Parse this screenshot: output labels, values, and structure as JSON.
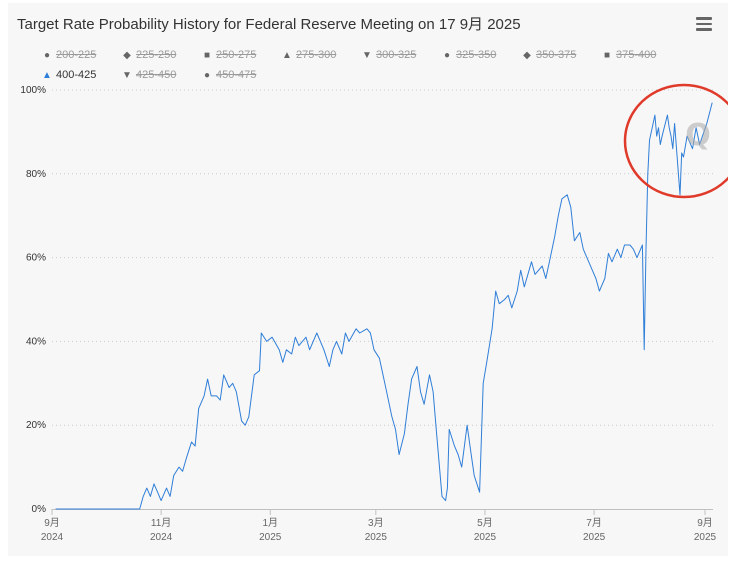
{
  "title": "Target Rate Probability History for Federal Reserve Meeting on 17 9月 2025",
  "menu_icon": "hamburger-menu-icon",
  "legend": [
    {
      "label": "200-225",
      "symbol": "circle",
      "active": false
    },
    {
      "label": "225-250",
      "symbol": "diamond",
      "active": false
    },
    {
      "label": "250-275",
      "symbol": "square",
      "active": false
    },
    {
      "label": "275-300",
      "symbol": "triangle",
      "active": false
    },
    {
      "label": "300-325",
      "symbol": "triangle-down",
      "active": false
    },
    {
      "label": "325-350",
      "symbol": "circle",
      "active": false
    },
    {
      "label": "350-375",
      "symbol": "diamond",
      "active": false
    },
    {
      "label": "375-400",
      "symbol": "square",
      "active": false
    },
    {
      "label": "400-425",
      "symbol": "triangle",
      "active": true
    },
    {
      "label": "425-450",
      "symbol": "triangle-down",
      "active": false
    },
    {
      "label": "450-475",
      "symbol": "circle",
      "active": false
    }
  ],
  "colors": {
    "series": "#2f7ed8",
    "grid": "#cccccc",
    "annotation_circle": "#e03a2a",
    "watermark": "#aaaaaa"
  },
  "annotation": {
    "shape": "red-circle",
    "watermark_letter": "Q"
  },
  "chart_data": {
    "type": "line",
    "title": "Target Rate Probability History for Federal Reserve Meeting on 17 9月 2025",
    "xlabel": "",
    "ylabel": "",
    "ylim": [
      0,
      100
    ],
    "y_ticks": [
      "0%",
      "20%",
      "40%",
      "60%",
      "80%",
      "100%"
    ],
    "x_ticks": [
      {
        "month": "9月",
        "year": "2024",
        "date": "2024-09-01"
      },
      {
        "month": "11月",
        "year": "2024",
        "date": "2024-11-01"
      },
      {
        "month": "1月",
        "year": "2025",
        "date": "2025-01-01"
      },
      {
        "month": "3月",
        "year": "2025",
        "date": "2025-03-01"
      },
      {
        "month": "5月",
        "year": "2025",
        "date": "2025-05-01"
      },
      {
        "month": "7月",
        "year": "2025",
        "date": "2025-07-01"
      },
      {
        "month": "9月",
        "year": "2025",
        "date": "2025-09-01"
      }
    ],
    "grid": "horizontal dotted",
    "legend_position": "top",
    "series": [
      {
        "name": "400-425",
        "points": [
          [
            "2024-09-03",
            0
          ],
          [
            "2024-09-20",
            0
          ],
          [
            "2024-10-10",
            0
          ],
          [
            "2024-10-20",
            0
          ],
          [
            "2024-10-22",
            3
          ],
          [
            "2024-10-24",
            5
          ],
          [
            "2024-10-26",
            3
          ],
          [
            "2024-10-28",
            6
          ],
          [
            "2024-10-30",
            4
          ],
          [
            "2024-11-01",
            2
          ],
          [
            "2024-11-04",
            5
          ],
          [
            "2024-11-06",
            3
          ],
          [
            "2024-11-08",
            8
          ],
          [
            "2024-11-11",
            10
          ],
          [
            "2024-11-13",
            9
          ],
          [
            "2024-11-15",
            12
          ],
          [
            "2024-11-18",
            16
          ],
          [
            "2024-11-20",
            15
          ],
          [
            "2024-11-22",
            24
          ],
          [
            "2024-11-25",
            27
          ],
          [
            "2024-11-27",
            31
          ],
          [
            "2024-11-29",
            27
          ],
          [
            "2024-12-02",
            27
          ],
          [
            "2024-12-04",
            26
          ],
          [
            "2024-12-06",
            32
          ],
          [
            "2024-12-09",
            29
          ],
          [
            "2024-12-11",
            30
          ],
          [
            "2024-12-13",
            28
          ],
          [
            "2024-12-16",
            21
          ],
          [
            "2024-12-18",
            20
          ],
          [
            "2024-12-20",
            22
          ],
          [
            "2024-12-23",
            32
          ],
          [
            "2024-12-26",
            33
          ],
          [
            "2024-12-27",
            42
          ],
          [
            "2024-12-30",
            40
          ],
          [
            "2025-01-02",
            41
          ],
          [
            "2025-01-06",
            38
          ],
          [
            "2025-01-08",
            35
          ],
          [
            "2025-01-10",
            38
          ],
          [
            "2025-01-13",
            37
          ],
          [
            "2025-01-15",
            41
          ],
          [
            "2025-01-17",
            39
          ],
          [
            "2025-01-21",
            41
          ],
          [
            "2025-01-23",
            38
          ],
          [
            "2025-01-27",
            42
          ],
          [
            "2025-01-29",
            40
          ],
          [
            "2025-01-31",
            38
          ],
          [
            "2025-02-03",
            34
          ],
          [
            "2025-02-05",
            38
          ],
          [
            "2025-02-07",
            40
          ],
          [
            "2025-02-10",
            37
          ],
          [
            "2025-02-12",
            42
          ],
          [
            "2025-02-14",
            40
          ],
          [
            "2025-02-18",
            43
          ],
          [
            "2025-02-20",
            42
          ],
          [
            "2025-02-24",
            43
          ],
          [
            "2025-02-26",
            42
          ],
          [
            "2025-02-28",
            38
          ],
          [
            "2025-03-03",
            36
          ],
          [
            "2025-03-05",
            32
          ],
          [
            "2025-03-07",
            28
          ],
          [
            "2025-03-10",
            22
          ],
          [
            "2025-03-12",
            19
          ],
          [
            "2025-03-14",
            13
          ],
          [
            "2025-03-17",
            18
          ],
          [
            "2025-03-19",
            25
          ],
          [
            "2025-03-21",
            31
          ],
          [
            "2025-03-24",
            34
          ],
          [
            "2025-03-26",
            28
          ],
          [
            "2025-03-28",
            25
          ],
          [
            "2025-03-31",
            32
          ],
          [
            "2025-04-02",
            28
          ],
          [
            "2025-04-04",
            18
          ],
          [
            "2025-04-07",
            3
          ],
          [
            "2025-04-09",
            2
          ],
          [
            "2025-04-10",
            5
          ],
          [
            "2025-04-11",
            19
          ],
          [
            "2025-04-14",
            15
          ],
          [
            "2025-04-16",
            13
          ],
          [
            "2025-04-18",
            10
          ],
          [
            "2025-04-21",
            20
          ],
          [
            "2025-04-23",
            14
          ],
          [
            "2025-04-25",
            8
          ],
          [
            "2025-04-28",
            4
          ],
          [
            "2025-04-30",
            30
          ],
          [
            "2025-05-02",
            35
          ],
          [
            "2025-05-05",
            43
          ],
          [
            "2025-05-07",
            52
          ],
          [
            "2025-05-09",
            49
          ],
          [
            "2025-05-12",
            50
          ],
          [
            "2025-05-14",
            51
          ],
          [
            "2025-05-16",
            48
          ],
          [
            "2025-05-19",
            52
          ],
          [
            "2025-05-21",
            57
          ],
          [
            "2025-05-23",
            53
          ],
          [
            "2025-05-27",
            59
          ],
          [
            "2025-05-29",
            56
          ],
          [
            "2025-06-02",
            58
          ],
          [
            "2025-06-04",
            55
          ],
          [
            "2025-06-06",
            59
          ],
          [
            "2025-06-09",
            65
          ],
          [
            "2025-06-11",
            70
          ],
          [
            "2025-06-13",
            74
          ],
          [
            "2025-06-16",
            75
          ],
          [
            "2025-06-18",
            72
          ],
          [
            "2025-06-20",
            64
          ],
          [
            "2025-06-23",
            66
          ],
          [
            "2025-06-25",
            62
          ],
          [
            "2025-06-27",
            60
          ],
          [
            "2025-06-30",
            57
          ],
          [
            "2025-07-02",
            55
          ],
          [
            "2025-07-04",
            52
          ],
          [
            "2025-07-07",
            55
          ],
          [
            "2025-07-09",
            61
          ],
          [
            "2025-07-11",
            59
          ],
          [
            "2025-07-14",
            62
          ],
          [
            "2025-07-16",
            60
          ],
          [
            "2025-07-18",
            63
          ],
          [
            "2025-07-21",
            63
          ],
          [
            "2025-07-23",
            62
          ],
          [
            "2025-07-25",
            60
          ],
          [
            "2025-07-28",
            63
          ],
          [
            "2025-07-29",
            38
          ],
          [
            "2025-07-30",
            62
          ],
          [
            "2025-07-31",
            80
          ],
          [
            "2025-08-01",
            88
          ],
          [
            "2025-08-04",
            94
          ],
          [
            "2025-08-05",
            89
          ],
          [
            "2025-08-06",
            91
          ],
          [
            "2025-08-07",
            87
          ],
          [
            "2025-08-08",
            89
          ],
          [
            "2025-08-11",
            94
          ],
          [
            "2025-08-12",
            91
          ],
          [
            "2025-08-13",
            89
          ],
          [
            "2025-08-14",
            86
          ],
          [
            "2025-08-15",
            92
          ],
          [
            "2025-08-18",
            75
          ],
          [
            "2025-08-19",
            85
          ],
          [
            "2025-08-20",
            84
          ],
          [
            "2025-08-22",
            89
          ],
          [
            "2025-08-25",
            86
          ],
          [
            "2025-08-27",
            91
          ],
          [
            "2025-08-29",
            87
          ],
          [
            "2025-09-02",
            92
          ],
          [
            "2025-09-05",
            97
          ]
        ]
      }
    ]
  }
}
